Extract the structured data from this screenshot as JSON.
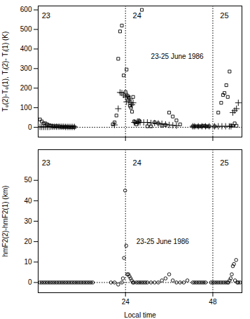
{
  "chart_data": [
    {
      "type": "scatter",
      "ylabel": "Tₑ(2)-Tₑ(1), Tᵢ(2)- Tᵢ(1) (K)",
      "xlim": [
        0,
        56
      ],
      "ylim": [
        -50,
        620
      ],
      "xticks": [
        24,
        48
      ],
      "yticks": [
        0,
        100,
        200,
        300,
        400,
        500,
        600
      ],
      "tick_labels": "y",
      "series": [
        {
          "marker": "square",
          "color": "black",
          "x": [
            0.5,
            1.0,
            1.5,
            2.0,
            2.5,
            3.0,
            3.5,
            4.0,
            4.5,
            5.0,
            5.5,
            6.0,
            6.5,
            7.0,
            7.5,
            8.0,
            8.5,
            9.0,
            9.5,
            10.0,
            20.5,
            21.0,
            21.5,
            22.0,
            22.5,
            23.0,
            23.5,
            24.0,
            24.3,
            24.6,
            24.9,
            25.2,
            25.5,
            25.8,
            26.1,
            26.4,
            26.7,
            27.0,
            27.3,
            27.6,
            27.9,
            28.5,
            30.0,
            31.0,
            32.0,
            33.0,
            34.0,
            35.0,
            36.0,
            37.0,
            38.0,
            39.0,
            42.5,
            43.0,
            43.5,
            44.0,
            44.5,
            45.0,
            45.5,
            46.0,
            46.5,
            47.0,
            48.5,
            49.5,
            50.3,
            50.8,
            51.2,
            51.7,
            52.1,
            52.6,
            53.0,
            53.5,
            54.0,
            54.5
          ],
          "values": [
            40,
            30,
            20,
            20,
            15,
            10,
            8,
            5,
            5,
            5,
            5,
            3,
            2,
            2,
            2,
            2,
            1,
            1,
            1,
            1,
            15,
            25,
            60,
            350,
            490,
            520,
            265,
            180,
            295,
            160,
            150,
            110,
            100,
            80,
            155,
            30,
            25,
            15,
            25,
            35,
            30,
            600,
            5,
            5,
            25,
            20,
            8,
            12,
            75,
            55,
            35,
            15,
            5,
            5,
            5,
            5,
            5,
            5,
            8,
            5,
            5,
            5,
            5,
            75,
            125,
            165,
            175,
            215,
            155,
            285,
            8,
            8,
            20,
            8
          ]
        },
        {
          "marker": "plus",
          "color": "black",
          "x": [
            0.5,
            1.0,
            1.5,
            2.0,
            2.5,
            3.0,
            3.5,
            4.0,
            4.5,
            5.0,
            5.5,
            6.0,
            6.5,
            7.0,
            7.5,
            8.0,
            8.5,
            9.0,
            9.5,
            10.0,
            21.0,
            22.0,
            22.5,
            23.0,
            23.5,
            24.0,
            24.3,
            24.6,
            24.9,
            25.2,
            25.5,
            25.8,
            26.1,
            26.4,
            27.5,
            28.0,
            29.0,
            30.0,
            31.0,
            32.0,
            33.0,
            34.0,
            35.0,
            36.0,
            37.0,
            38.0,
            42.5,
            43.0,
            44.0,
            45.0,
            46.0,
            47.0,
            48.5,
            49.5,
            50.5,
            51.5,
            52.5,
            53.0,
            53.5,
            54.0,
            54.5,
            55.0
          ],
          "values": [
            2,
            2,
            2,
            2,
            2,
            2,
            3,
            3,
            3,
            3,
            3,
            3,
            3,
            3,
            2,
            2,
            2,
            2,
            2,
            2,
            12,
            95,
            178,
            175,
            165,
            155,
            130,
            160,
            135,
            145,
            125,
            115,
            125,
            25,
            25,
            25,
            25,
            25,
            22,
            22,
            20,
            18,
            15,
            12,
            10,
            8,
            5,
            5,
            5,
            5,
            5,
            5,
            5,
            5,
            5,
            5,
            5,
            5,
            75,
            85,
            95,
            125
          ]
        }
      ],
      "vlines": [
        24,
        48
      ],
      "hlines": [
        0
      ],
      "day_labels": [
        {
          "text": "23",
          "x": 1,
          "y": 585
        },
        {
          "text": "24",
          "x": 26,
          "y": 585
        },
        {
          "text": "25",
          "x": 50,
          "y": 585
        }
      ],
      "annotation": {
        "text": "23-25 June 1986",
        "x": 31,
        "y": 360
      }
    },
    {
      "type": "scatter",
      "xlabel": "Local time",
      "ylabel": "hmF2(2)-hmF2(1) (km)",
      "xlim": [
        0,
        56
      ],
      "ylim": [
        -5,
        65
      ],
      "xticks": [
        24,
        48
      ],
      "yticks": [
        0,
        10,
        20,
        30,
        40,
        50
      ],
      "series": [
        {
          "marker": "circle",
          "color": "black",
          "x": [
            0.5,
            1.0,
            1.5,
            2.0,
            2.5,
            3.0,
            3.5,
            4.0,
            4.5,
            5.0,
            5.5,
            6.0,
            6.5,
            7.0,
            7.5,
            8.0,
            8.5,
            9.0,
            9.5,
            10.0,
            10.5,
            11.0,
            11.5,
            12.0,
            12.5,
            13.0,
            13.5,
            14.0,
            14.5,
            15.0,
            20.0,
            21.0,
            22.0,
            23.0,
            23.3,
            23.6,
            23.9,
            24.2,
            24.5,
            24.8,
            25.1,
            25.4,
            25.7,
            26.0,
            26.3,
            27.0,
            27.5,
            28.0,
            28.5,
            29.0,
            29.5,
            30.0,
            31.0,
            32.0,
            33.0,
            34.0,
            35.0,
            36.0,
            37.0,
            38.0,
            39.0,
            40.0,
            41.0,
            42.5,
            43.0,
            43.5,
            44.0,
            44.5,
            45.0,
            45.5,
            46.0,
            47.5,
            48.0,
            48.5,
            49.0,
            49.5,
            50.0,
            50.5,
            51.0,
            51.5,
            52.0,
            52.3,
            52.6,
            52.9,
            53.2,
            53.5,
            53.8,
            54.1,
            54.4,
            54.7,
            55.0,
            55.5
          ],
          "values": [
            0,
            0,
            0,
            0,
            0,
            0,
            0,
            0,
            0,
            0,
            0,
            0,
            0,
            0,
            0,
            0,
            0,
            0,
            0,
            0,
            0,
            0,
            0,
            0,
            0,
            0,
            0,
            0,
            0,
            0,
            0,
            0,
            -1,
            0,
            2,
            12,
            45,
            18,
            4,
            4,
            3,
            2,
            1,
            0,
            0,
            0,
            0,
            0,
            0,
            0,
            0,
            0,
            0,
            0,
            0,
            1,
            2,
            4,
            1,
            0,
            0,
            0,
            1,
            0,
            0,
            0,
            0,
            0,
            0,
            0,
            0,
            0,
            0,
            0,
            0,
            0,
            0,
            0,
            0,
            0,
            0,
            0,
            1,
            2,
            4,
            8,
            9,
            1,
            11,
            0,
            0,
            0
          ]
        }
      ],
      "vlines": [
        24,
        48
      ],
      "hlines": [
        0
      ],
      "day_labels": [
        {
          "text": "23",
          "x": 1,
          "y": 60
        },
        {
          "text": "24",
          "x": 26,
          "y": 60
        },
        {
          "text": "25",
          "x": 50,
          "y": 60
        }
      ],
      "annotation": {
        "text": "23-25 June 1986",
        "x": 27,
        "y": 20
      }
    }
  ]
}
